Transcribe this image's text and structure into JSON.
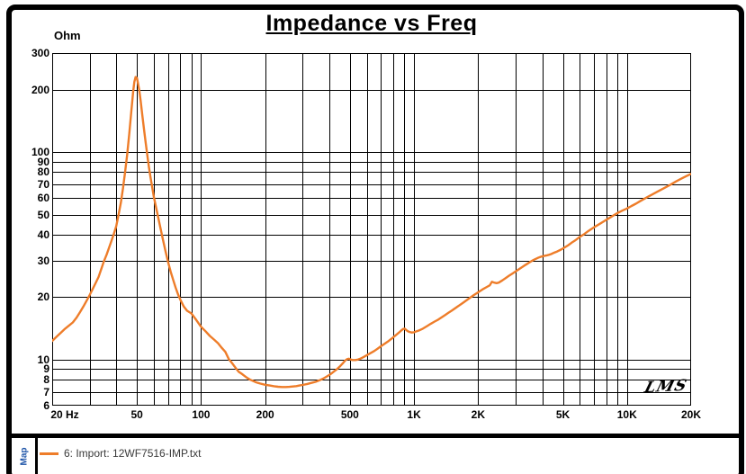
{
  "title": "Impedance vs Freq",
  "signature": "LMS",
  "window": {
    "map_tab_label": "Map"
  },
  "legend": {
    "label": "6: Import: 12WF7516-IMP.txt",
    "color": "#EE7D2A",
    "text_color": "#3a3a3a"
  },
  "colors": {
    "curve": "#EE7D2A",
    "grid": "#000000",
    "frame": "#000000",
    "map_label": "#1F55A8"
  },
  "chart_data": {
    "type": "line",
    "title": "Impedance vs Freq",
    "grid": "log-log, minor decade lines on both axes, black on white",
    "legend_position": "bottom-left bar below chart",
    "x_axis": {
      "unit": "Hz",
      "scale": "log",
      "min": 20,
      "max": 20000,
      "ticks": [
        {
          "f": 20,
          "label": "20 Hz"
        },
        {
          "f": 50,
          "label": "50"
        },
        {
          "f": 100,
          "label": "100"
        },
        {
          "f": 200,
          "label": "200"
        },
        {
          "f": 500,
          "label": "500"
        },
        {
          "f": 1000,
          "label": "1K"
        },
        {
          "f": 2000,
          "label": "2K"
        },
        {
          "f": 5000,
          "label": "5K"
        },
        {
          "f": 10000,
          "label": "10K"
        },
        {
          "f": 20000,
          "label": "20K"
        }
      ]
    },
    "y_axis": {
      "label": "Ohm",
      "unit": "Ohm",
      "scale": "log",
      "min": 6,
      "max": 300,
      "ticks": [
        {
          "v": 300,
          "label": "300"
        },
        {
          "v": 200,
          "label": "200"
        },
        {
          "v": 100,
          "label": "100"
        },
        {
          "v": 90,
          "label": "90"
        },
        {
          "v": 80,
          "label": "80"
        },
        {
          "v": 70,
          "label": "70"
        },
        {
          "v": 60,
          "label": "60"
        },
        {
          "v": 50,
          "label": "50"
        },
        {
          "v": 40,
          "label": "40"
        },
        {
          "v": 30,
          "label": "30"
        },
        {
          "v": 20,
          "label": "20"
        },
        {
          "v": 10,
          "label": "10"
        },
        {
          "v": 9,
          "label": "9"
        },
        {
          "v": 8,
          "label": "8"
        },
        {
          "v": 7,
          "label": "7"
        },
        {
          "v": 6,
          "label": "6"
        }
      ]
    },
    "series": [
      {
        "name": "6: Import: 12WF7516-IMP.txt",
        "color": "#EE7D2A",
        "points": [
          [
            20,
            12.3
          ],
          [
            21,
            12.9
          ],
          [
            22,
            13.5
          ],
          [
            23,
            14.1
          ],
          [
            24,
            14.6
          ],
          [
            25,
            15.1
          ],
          [
            26,
            15.9
          ],
          [
            27,
            16.9
          ],
          [
            28,
            18.0
          ],
          [
            29,
            19.2
          ],
          [
            30,
            20.5
          ],
          [
            31,
            21.9
          ],
          [
            32,
            23.4
          ],
          [
            33,
            25.0
          ],
          [
            34,
            27.3
          ],
          [
            35,
            29.8
          ],
          [
            36,
            32.0
          ],
          [
            37,
            34.6
          ],
          [
            38,
            37.5
          ],
          [
            39,
            40.5
          ],
          [
            40,
            44.0
          ],
          [
            41,
            50.0
          ],
          [
            42,
            57.0
          ],
          [
            43,
            67.0
          ],
          [
            44,
            80.0
          ],
          [
            45,
            97.0
          ],
          [
            46,
            122
          ],
          [
            47,
            155
          ],
          [
            48,
            196
          ],
          [
            48.6,
            218
          ],
          [
            49.3,
            230
          ],
          [
            50,
            227
          ],
          [
            50.6,
            214
          ],
          [
            51.3,
            198
          ],
          [
            52,
            178
          ],
          [
            53,
            150
          ],
          [
            54,
            128
          ],
          [
            55,
            110
          ],
          [
            56,
            96
          ],
          [
            57,
            84
          ],
          [
            58,
            75
          ],
          [
            59,
            67.5
          ],
          [
            60,
            61
          ],
          [
            62,
            52
          ],
          [
            64,
            44.5
          ],
          [
            66,
            38.5
          ],
          [
            68,
            33.5
          ],
          [
            70,
            29.5
          ],
          [
            72,
            26.5
          ],
          [
            74,
            24.2
          ],
          [
            76,
            22.2
          ],
          [
            78,
            20.6
          ],
          [
            80,
            19.4
          ],
          [
            83,
            18.0
          ],
          [
            86,
            17.2
          ],
          [
            90,
            16.7
          ],
          [
            95,
            15.5
          ],
          [
            100,
            14.4
          ],
          [
            105,
            13.7
          ],
          [
            110,
            13.0
          ],
          [
            115,
            12.5
          ],
          [
            120,
            12.0
          ],
          [
            125,
            11.4
          ],
          [
            130,
            10.9
          ],
          [
            135,
            10.05
          ],
          [
            140,
            9.6
          ],
          [
            145,
            9.15
          ],
          [
            150,
            8.75
          ],
          [
            155,
            8.55
          ],
          [
            160,
            8.35
          ],
          [
            165,
            8.15
          ],
          [
            170,
            8.0
          ],
          [
            175,
            7.9
          ],
          [
            180,
            7.8
          ],
          [
            185,
            7.72
          ],
          [
            190,
            7.66
          ],
          [
            200,
            7.56
          ],
          [
            210,
            7.5
          ],
          [
            220,
            7.44
          ],
          [
            230,
            7.4
          ],
          [
            240,
            7.38
          ],
          [
            250,
            7.38
          ],
          [
            260,
            7.39
          ],
          [
            270,
            7.42
          ],
          [
            280,
            7.45
          ],
          [
            290,
            7.5
          ],
          [
            300,
            7.55
          ],
          [
            315,
            7.63
          ],
          [
            330,
            7.72
          ],
          [
            345,
            7.82
          ],
          [
            360,
            7.95
          ],
          [
            375,
            8.1
          ],
          [
            390,
            8.3
          ],
          [
            405,
            8.5
          ],
          [
            420,
            8.75
          ],
          [
            435,
            9.0
          ],
          [
            450,
            9.3
          ],
          [
            465,
            9.65
          ],
          [
            475,
            9.9
          ],
          [
            485,
            10.05
          ],
          [
            495,
            10.1
          ],
          [
            505,
            10.0
          ],
          [
            515,
            9.95
          ],
          [
            530,
            9.95
          ],
          [
            545,
            10.0
          ],
          [
            560,
            10.1
          ],
          [
            580,
            10.3
          ],
          [
            600,
            10.5
          ],
          [
            625,
            10.75
          ],
          [
            650,
            11.0
          ],
          [
            675,
            11.3
          ],
          [
            700,
            11.6
          ],
          [
            730,
            11.95
          ],
          [
            760,
            12.3
          ],
          [
            790,
            12.7
          ],
          [
            820,
            13.1
          ],
          [
            850,
            13.5
          ],
          [
            870,
            13.8
          ],
          [
            890,
            14.05
          ],
          [
            905,
            14.1
          ],
          [
            915,
            13.95
          ],
          [
            930,
            13.75
          ],
          [
            950,
            13.6
          ],
          [
            975,
            13.5
          ],
          [
            1000,
            13.55
          ],
          [
            1030,
            13.7
          ],
          [
            1060,
            13.85
          ],
          [
            1100,
            14.1
          ],
          [
            1150,
            14.5
          ],
          [
            1200,
            14.9
          ],
          [
            1250,
            15.25
          ],
          [
            1300,
            15.6
          ],
          [
            1350,
            16.0
          ],
          [
            1400,
            16.4
          ],
          [
            1450,
            16.8
          ],
          [
            1500,
            17.2
          ],
          [
            1600,
            18.0
          ],
          [
            1700,
            18.8
          ],
          [
            1800,
            19.6
          ],
          [
            1900,
            20.4
          ],
          [
            2000,
            21.1
          ],
          [
            2100,
            21.8
          ],
          [
            2200,
            22.4
          ],
          [
            2270,
            22.8
          ],
          [
            2320,
            23.7
          ],
          [
            2380,
            23.5
          ],
          [
            2440,
            23.35
          ],
          [
            2500,
            23.5
          ],
          [
            2600,
            24.1
          ],
          [
            2700,
            24.75
          ],
          [
            2800,
            25.4
          ],
          [
            2900,
            26.0
          ],
          [
            3000,
            26.6
          ],
          [
            3100,
            27.2
          ],
          [
            3200,
            27.8
          ],
          [
            3300,
            28.4
          ],
          [
            3400,
            28.95
          ],
          [
            3500,
            29.5
          ],
          [
            3600,
            30.0
          ],
          [
            3700,
            30.45
          ],
          [
            3800,
            30.85
          ],
          [
            3900,
            31.2
          ],
          [
            4000,
            31.45
          ],
          [
            4100,
            31.65
          ],
          [
            4200,
            31.8
          ],
          [
            4300,
            32.0
          ],
          [
            4400,
            32.25
          ],
          [
            4500,
            32.6
          ],
          [
            4700,
            33.2
          ],
          [
            4900,
            33.9
          ],
          [
            5100,
            34.7
          ],
          [
            5300,
            35.6
          ],
          [
            5500,
            36.6
          ],
          [
            5700,
            37.5
          ],
          [
            6000,
            39.0
          ],
          [
            6300,
            40.3
          ],
          [
            6600,
            41.7
          ],
          [
            7000,
            43.4
          ],
          [
            7400,
            44.9
          ],
          [
            7800,
            46.4
          ],
          [
            8200,
            47.9
          ],
          [
            8600,
            49.4
          ],
          [
            9000,
            50.8
          ],
          [
            9500,
            52.2
          ],
          [
            10000,
            53.5
          ],
          [
            10500,
            55.0
          ],
          [
            11000,
            56.4
          ],
          [
            11500,
            57.9
          ],
          [
            12000,
            59.4
          ],
          [
            12500,
            60.8
          ],
          [
            13000,
            62.1
          ],
          [
            13500,
            63.4
          ],
          [
            14000,
            64.7
          ],
          [
            15000,
            67.2
          ],
          [
            16000,
            69.7
          ],
          [
            17000,
            72.2
          ],
          [
            18000,
            74.5
          ],
          [
            19000,
            76.6
          ],
          [
            20000,
            78.5
          ]
        ]
      }
    ]
  }
}
